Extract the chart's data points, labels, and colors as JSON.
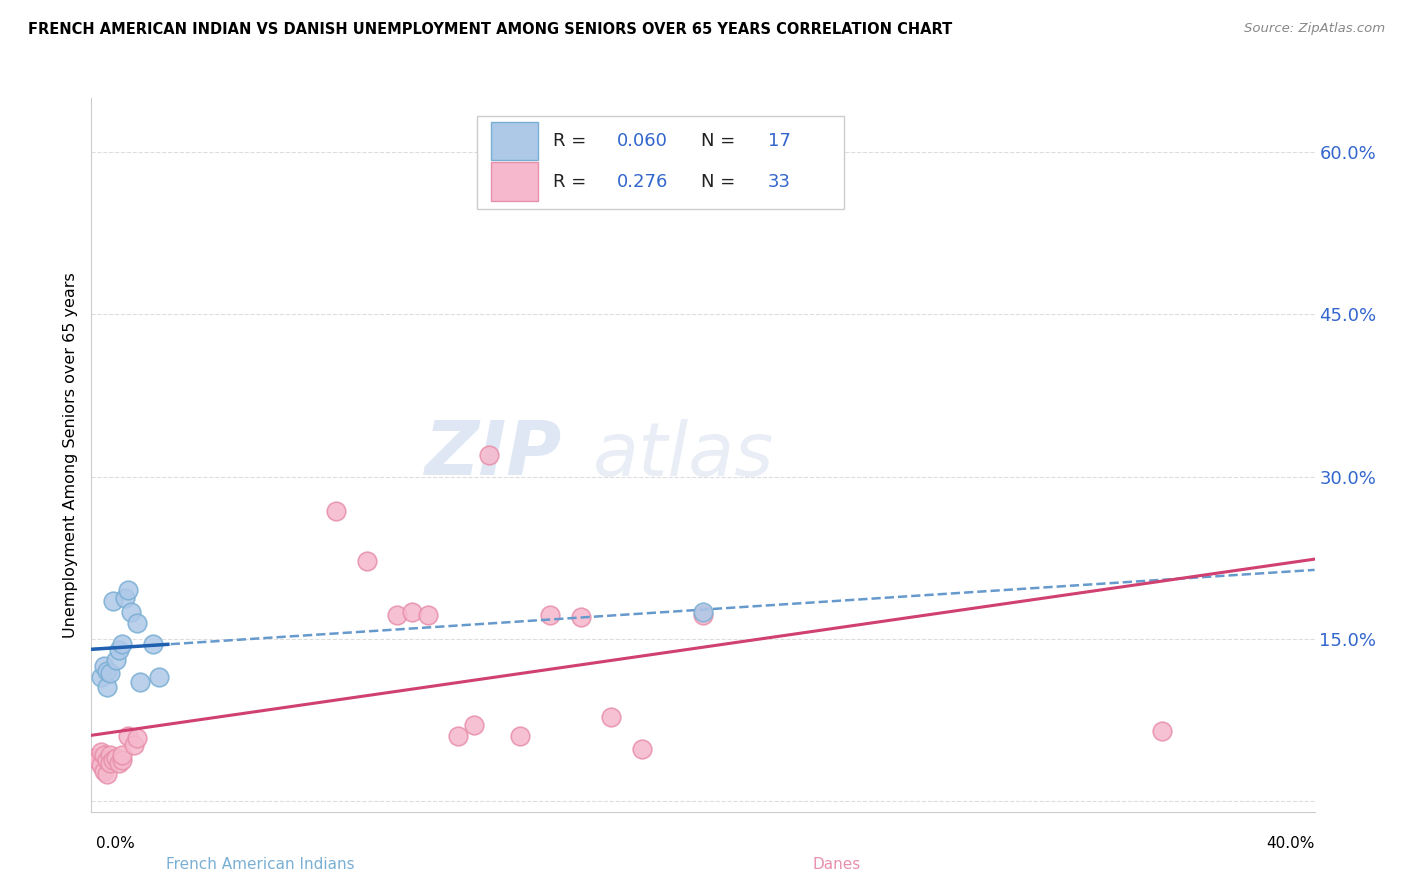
{
  "title": "FRENCH AMERICAN INDIAN VS DANISH UNEMPLOYMENT AMONG SENIORS OVER 65 YEARS CORRELATION CHART",
  "source": "Source: ZipAtlas.com",
  "ylabel": "Unemployment Among Seniors over 65 years",
  "xlim": [
    0.0,
    0.4
  ],
  "ylim": [
    -0.01,
    0.65
  ],
  "ytick_vals": [
    0.0,
    0.15,
    0.3,
    0.45,
    0.6
  ],
  "ytick_labels": [
    "",
    "15.0%",
    "30.0%",
    "45.0%",
    "60.0%"
  ],
  "legend_blue_r": "0.060",
  "legend_blue_n": "17",
  "legend_pink_r": "0.276",
  "legend_pink_n": "33",
  "blue_fill_color": "#aec8e8",
  "blue_edge_color": "#7aafd4",
  "pink_fill_color": "#f5b8cc",
  "pink_edge_color": "#e890ab",
  "blue_line_color": "#2060b0",
  "pink_line_color": "#d04070",
  "blue_dashed_color": "#6699cc",
  "xlabel_bottom_left": "French American Indians",
  "xlabel_bottom_right": "Danes",
  "blue_x": [
    0.003,
    0.004,
    0.005,
    0.005,
    0.006,
    0.007,
    0.008,
    0.009,
    0.01,
    0.011,
    0.012,
    0.013,
    0.015,
    0.016,
    0.02,
    0.022,
    0.2
  ],
  "blue_y": [
    0.115,
    0.125,
    0.105,
    0.12,
    0.118,
    0.185,
    0.13,
    0.14,
    0.145,
    0.188,
    0.195,
    0.175,
    0.165,
    0.11,
    0.145,
    0.115,
    0.175
  ],
  "pink_x": [
    0.001,
    0.002,
    0.003,
    0.003,
    0.004,
    0.004,
    0.005,
    0.005,
    0.006,
    0.006,
    0.007,
    0.008,
    0.009,
    0.01,
    0.01,
    0.012,
    0.014,
    0.015,
    0.08,
    0.09,
    0.1,
    0.105,
    0.11,
    0.12,
    0.125,
    0.13,
    0.14,
    0.15,
    0.16,
    0.17,
    0.18,
    0.2,
    0.35
  ],
  "pink_y": [
    0.04,
    0.038,
    0.033,
    0.045,
    0.028,
    0.042,
    0.025,
    0.038,
    0.042,
    0.035,
    0.038,
    0.04,
    0.035,
    0.038,
    0.042,
    0.06,
    0.052,
    0.058,
    0.268,
    0.222,
    0.172,
    0.175,
    0.172,
    0.06,
    0.07,
    0.32,
    0.06,
    0.172,
    0.17,
    0.078,
    0.048,
    0.172,
    0.065
  ],
  "grid_color": "#dddddd",
  "spine_color": "#cccccc",
  "bg_color": "#ffffff"
}
